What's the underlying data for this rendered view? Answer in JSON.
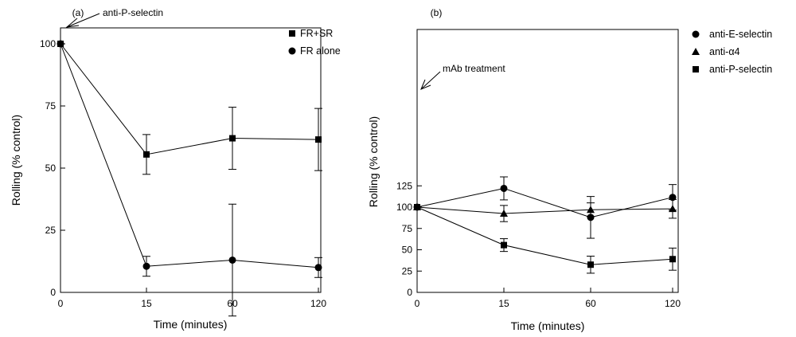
{
  "chart_data": [
    {
      "type": "line",
      "panel_label": "(a)",
      "xlabel": "Time (minutes)",
      "ylabel": "Rolling (% control)",
      "categories": [
        "0",
        "15",
        "60",
        "120"
      ],
      "yticks": [
        "0",
        "25",
        "50",
        "75",
        "100"
      ],
      "ylim": [
        0,
        100
      ],
      "legend_placement": "top-right",
      "annotation": "anti-P-selectin",
      "series": [
        {
          "name": "FR+SR",
          "marker": "square",
          "values": [
            100,
            55.5,
            62,
            61.5
          ],
          "error": [
            0,
            8,
            12.5,
            12.5
          ]
        },
        {
          "name": "FR alone",
          "marker": "circle",
          "values": [
            100,
            10.5,
            13,
            10
          ],
          "error": [
            0,
            4,
            22.5,
            4
          ]
        }
      ]
    },
    {
      "type": "line",
      "panel_label": "(b)",
      "xlabel": "Time (minutes)",
      "ylabel": "Rolling (% control)",
      "categories": [
        "0",
        "15",
        "60",
        "120"
      ],
      "yticks": [
        "0",
        "25",
        "50",
        "75",
        "100",
        "125"
      ],
      "ylim": [
        0,
        140
      ],
      "legend_placement": "outside-right",
      "annotation": "mAb treatment",
      "series": [
        {
          "name": "anti-E-selectin",
          "marker": "circle",
          "values": [
            100,
            122,
            88,
            111.5
          ],
          "error": [
            0,
            13.5,
            24.5,
            15
          ]
        },
        {
          "name": "anti-α4",
          "marker": "triangle",
          "values": [
            100,
            92.5,
            97,
            98
          ],
          "error": [
            0,
            9.5,
            8,
            11
          ]
        },
        {
          "name": "anti-P-selectin",
          "marker": "square",
          "values": [
            100,
            55.5,
            32.5,
            39
          ],
          "error": [
            0,
            7.5,
            10,
            13
          ]
        }
      ]
    }
  ]
}
